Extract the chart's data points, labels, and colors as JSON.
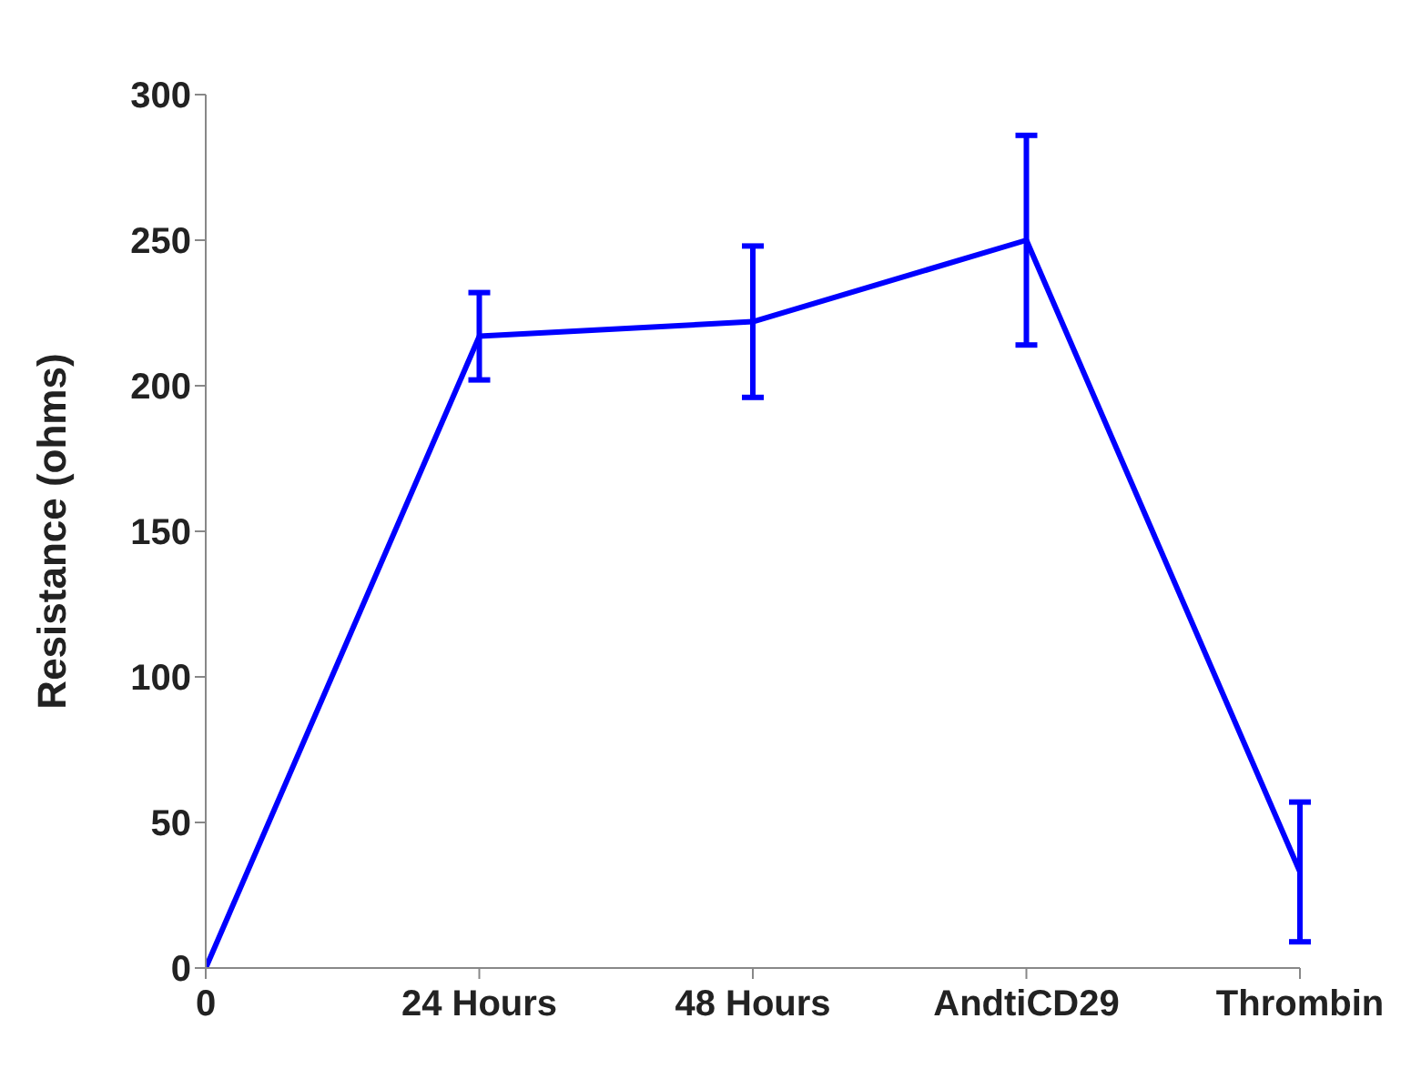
{
  "chart_data": {
    "type": "line",
    "ylabel": "Resistance (ohms)",
    "categories": [
      "0",
      "24 Hours",
      "48 Hours",
      "AndtiCD29",
      "Thrombin"
    ],
    "series": [
      {
        "color": "#0000ff",
        "values": [
          0,
          217,
          222,
          250,
          33
        ],
        "errors": [
          null,
          15,
          26,
          36,
          24
        ]
      }
    ],
    "ylim": [
      0,
      300
    ],
    "yticks": [
      0,
      50,
      100,
      150,
      200,
      250,
      300
    ],
    "grid": false,
    "legend": false,
    "marker": "none",
    "line_style": "solid"
  }
}
